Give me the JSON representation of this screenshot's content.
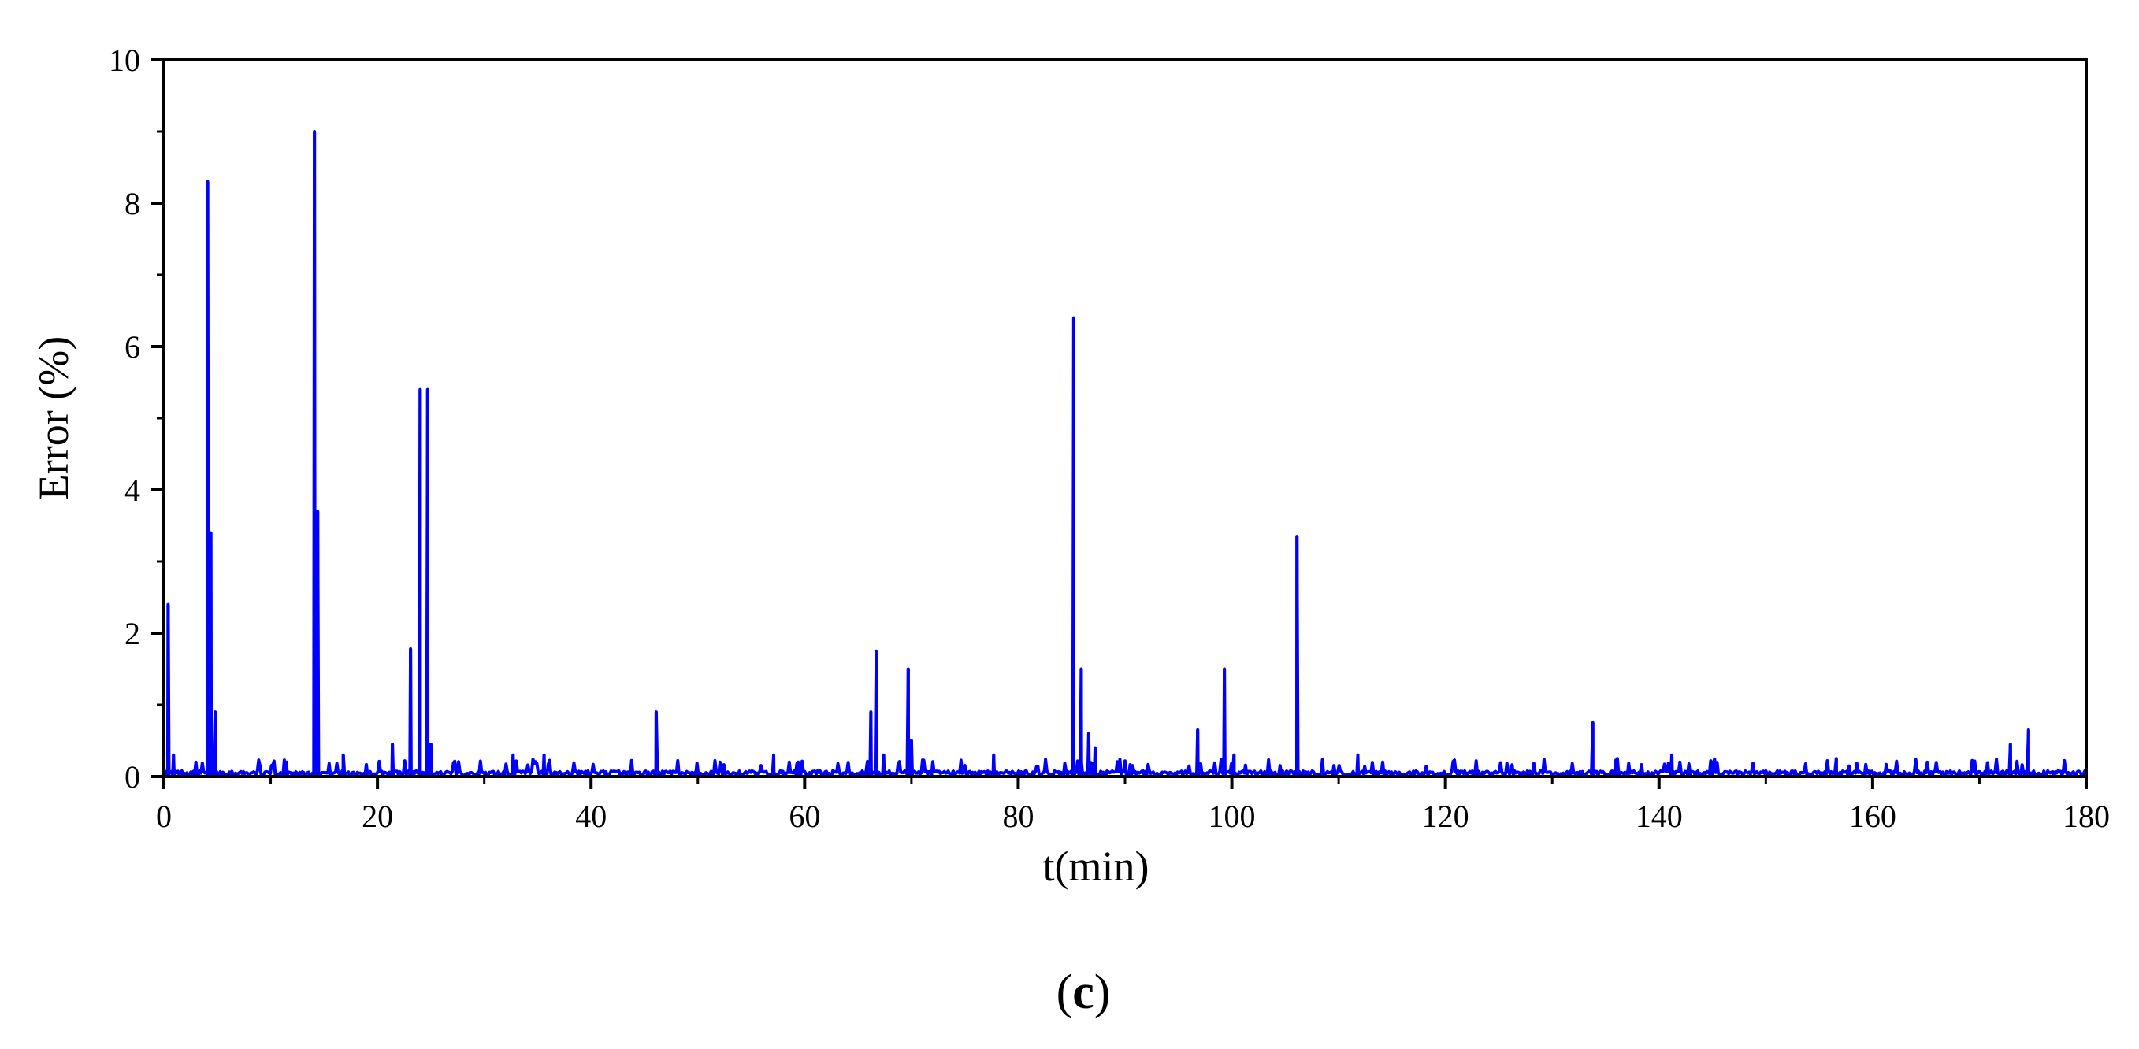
{
  "chart_data": {
    "type": "line",
    "title": "",
    "xlabel": "t(min)",
    "ylabel": "Error (%)",
    "xlim": [
      0,
      180
    ],
    "ylim": [
      0,
      10
    ],
    "x_ticks": [
      0,
      20,
      40,
      60,
      80,
      100,
      120,
      140,
      160,
      180
    ],
    "y_ticks": [
      0,
      2,
      4,
      6,
      8,
      10
    ],
    "x_tick_labels": [
      "0",
      "20",
      "40",
      "60",
      "80",
      "100",
      "120",
      "140",
      "160",
      "180"
    ],
    "y_tick_labels": [
      "0",
      "2",
      "4",
      "6",
      "8",
      "10"
    ],
    "grid": false,
    "legend": "none",
    "line_color": "#0000ff",
    "baseline_level": 0.05,
    "peaks": [
      {
        "t": 0.4,
        "value": 2.4
      },
      {
        "t": 0.9,
        "value": 0.3
      },
      {
        "t": 4.1,
        "value": 8.3
      },
      {
        "t": 4.4,
        "value": 3.4
      },
      {
        "t": 4.8,
        "value": 0.9
      },
      {
        "t": 11.5,
        "value": 0.2
      },
      {
        "t": 14.1,
        "value": 9.0
      },
      {
        "t": 14.4,
        "value": 3.7
      },
      {
        "t": 16.8,
        "value": 0.3
      },
      {
        "t": 21.4,
        "value": 0.45
      },
      {
        "t": 23.1,
        "value": 1.78
      },
      {
        "t": 24.0,
        "value": 5.4
      },
      {
        "t": 24.7,
        "value": 5.4
      },
      {
        "t": 25.0,
        "value": 0.45
      },
      {
        "t": 32.7,
        "value": 0.3
      },
      {
        "t": 35.6,
        "value": 0.3
      },
      {
        "t": 46.1,
        "value": 0.9
      },
      {
        "t": 57.1,
        "value": 0.3
      },
      {
        "t": 59.4,
        "value": 0.2
      },
      {
        "t": 66.2,
        "value": 0.9
      },
      {
        "t": 66.7,
        "value": 1.75
      },
      {
        "t": 67.4,
        "value": 0.3
      },
      {
        "t": 69.7,
        "value": 1.5
      },
      {
        "t": 70.0,
        "value": 0.5
      },
      {
        "t": 77.7,
        "value": 0.3
      },
      {
        "t": 85.2,
        "value": 6.4
      },
      {
        "t": 85.9,
        "value": 1.5
      },
      {
        "t": 86.6,
        "value": 0.6
      },
      {
        "t": 87.2,
        "value": 0.4
      },
      {
        "t": 96.8,
        "value": 0.65
      },
      {
        "t": 99.3,
        "value": 1.5
      },
      {
        "t": 100.2,
        "value": 0.3
      },
      {
        "t": 106.1,
        "value": 3.35
      },
      {
        "t": 111.8,
        "value": 0.3
      },
      {
        "t": 133.8,
        "value": 0.75
      },
      {
        "t": 136.1,
        "value": 0.25
      },
      {
        "t": 141.2,
        "value": 0.3
      },
      {
        "t": 156.6,
        "value": 0.25
      },
      {
        "t": 172.9,
        "value": 0.45
      },
      {
        "t": 174.6,
        "value": 0.65
      }
    ]
  },
  "caption": {
    "open": "(",
    "letter": "c",
    "close": ")"
  }
}
